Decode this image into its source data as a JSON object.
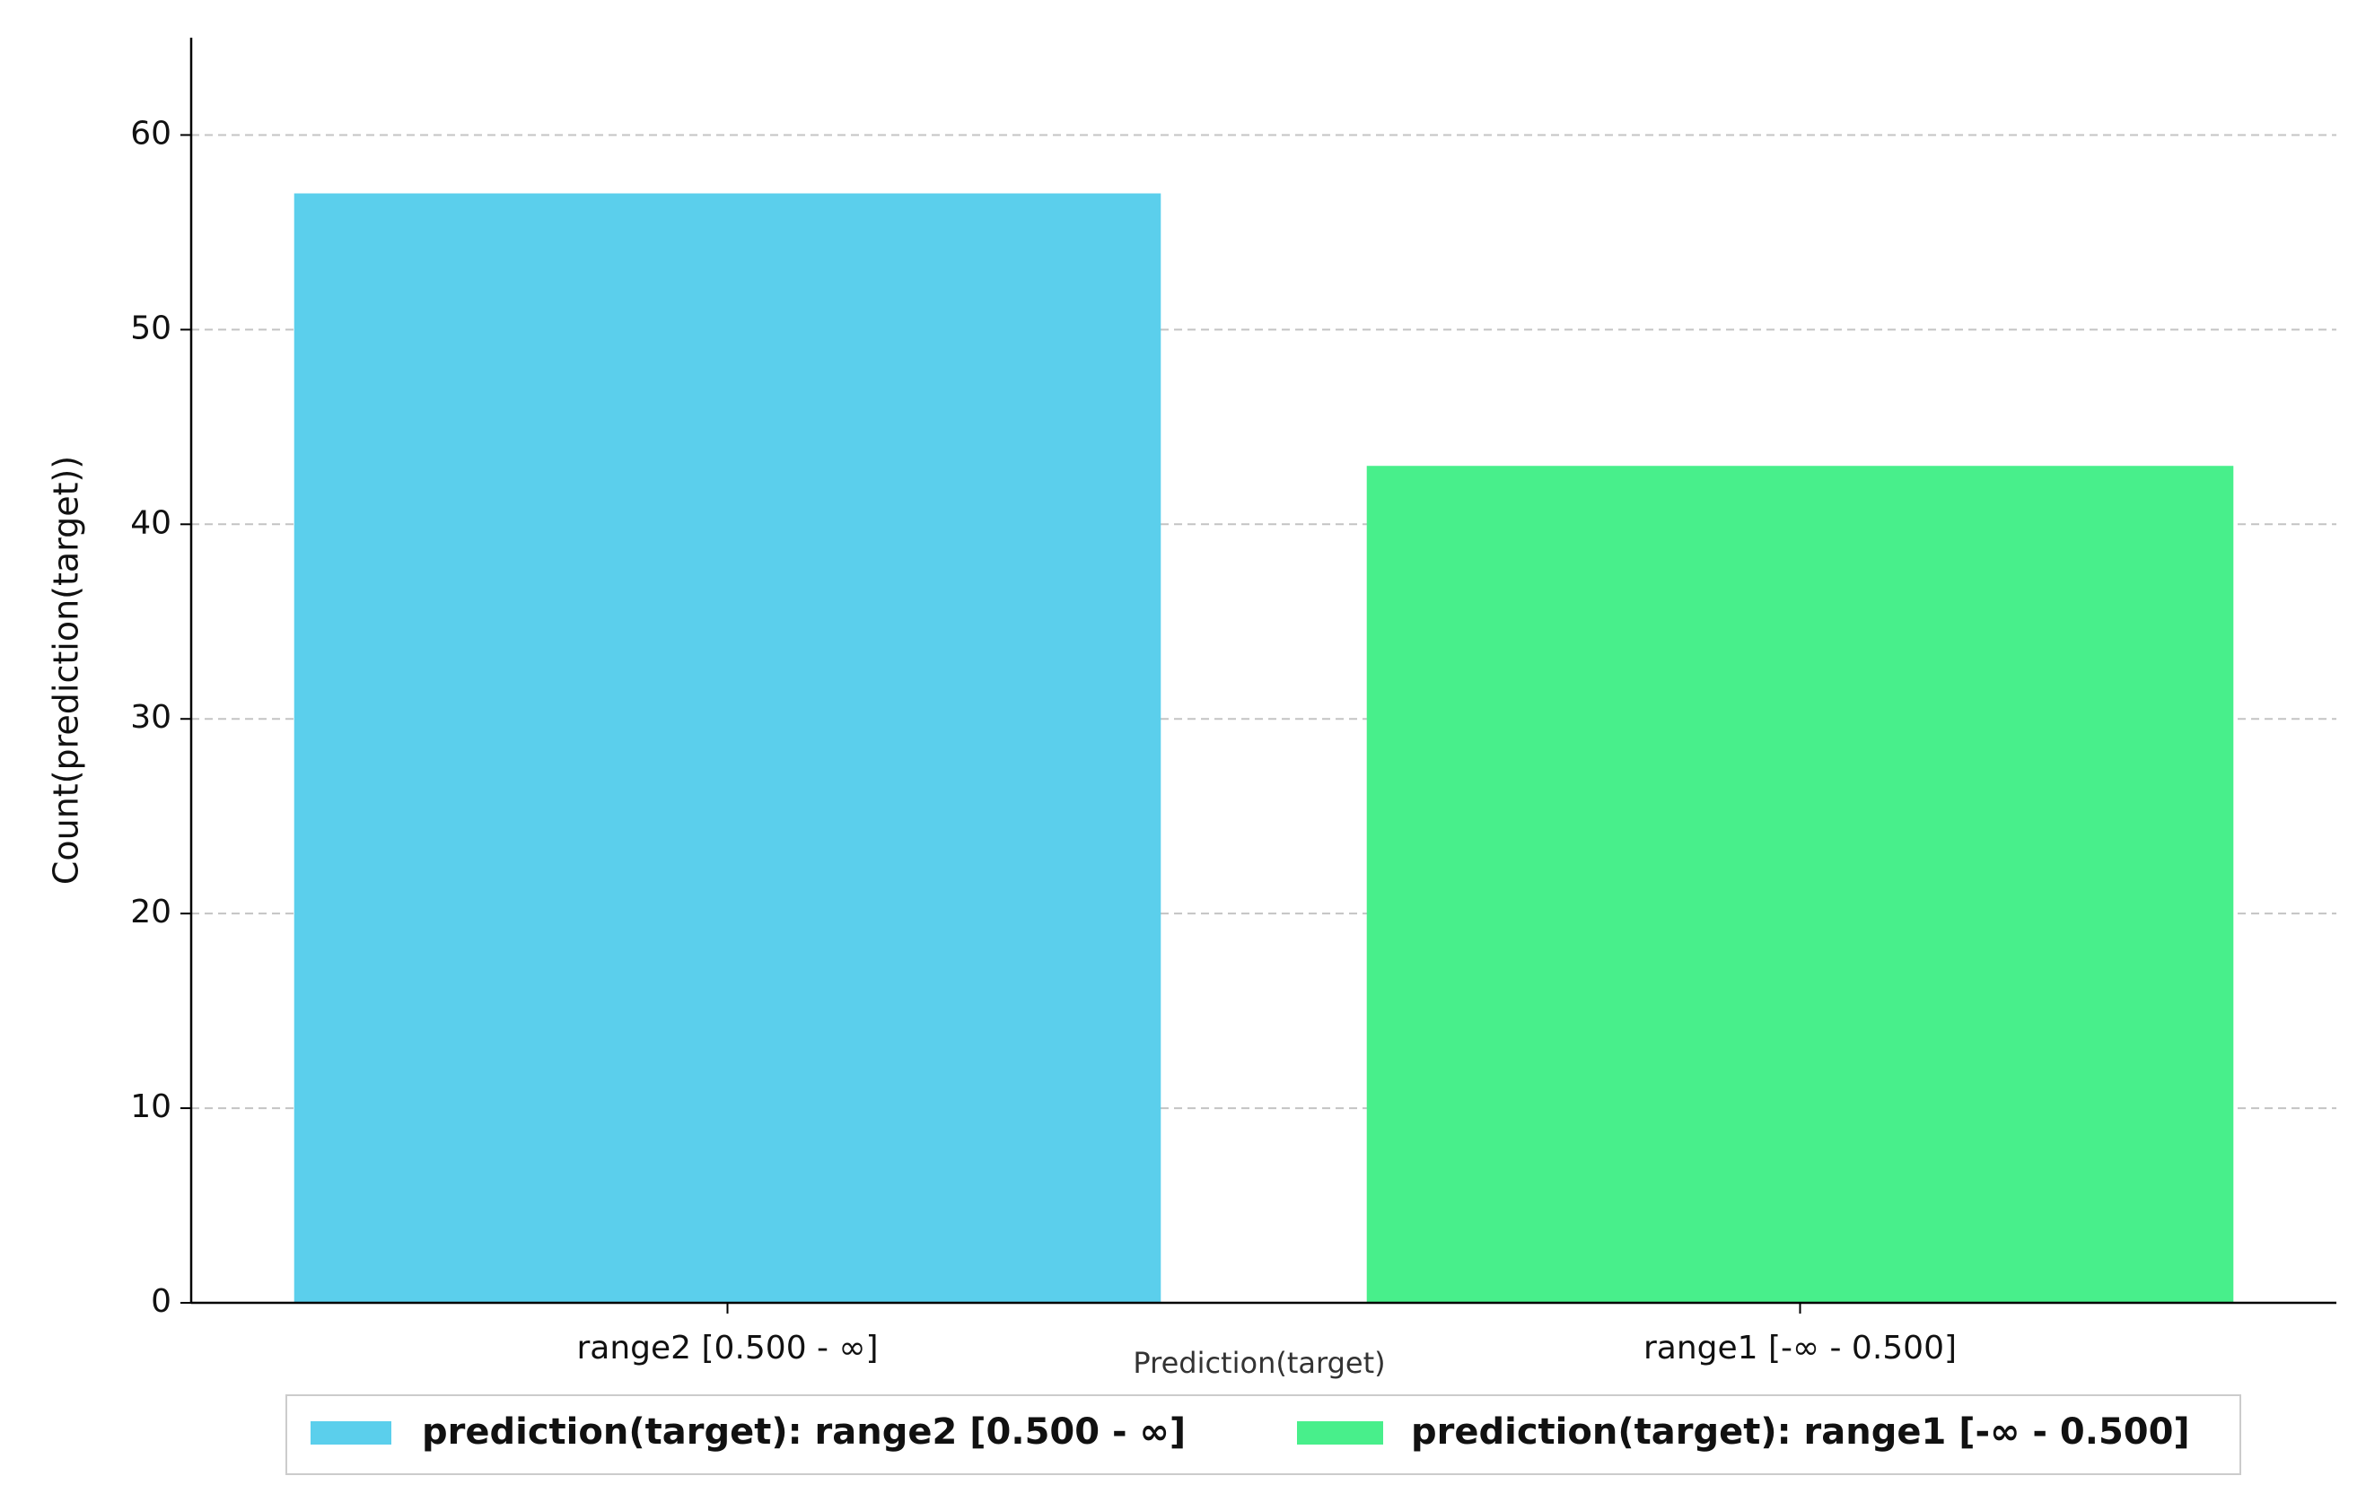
{
  "chart_data": {
    "type": "bar",
    "categories": [
      "range2 [0.500 - ∞]",
      "range1 [-∞ - 0.500]"
    ],
    "values": [
      57,
      43
    ],
    "colors": [
      "#5bcfec",
      "#48ef8b"
    ],
    "x_label": "Prediction(target)",
    "y_label": "Count(prediction(target))",
    "legend": [
      "prediction(target): range2 [0.500 - ∞]",
      "prediction(target): range1 [-∞ - 0.500]"
    ],
    "ylim": [
      0,
      65
    ],
    "yticks": [
      0,
      10,
      20,
      30,
      40,
      50,
      60
    ],
    "grid": true
  }
}
